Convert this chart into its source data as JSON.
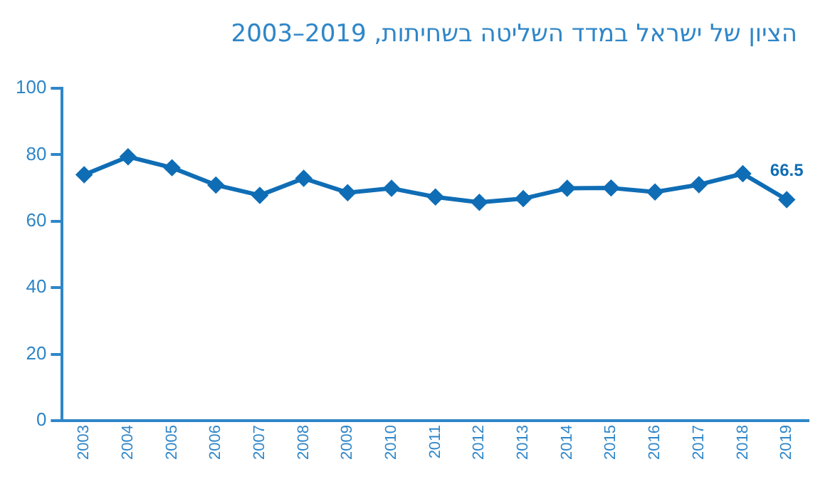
{
  "chart_data": {
    "type": "line",
    "title": "הציון של ישראל במדד השליטה בשחיתות, 2019–2003",
    "categories": [
      "2003",
      "2004",
      "2005",
      "2006",
      "2007",
      "2008",
      "2009",
      "2010",
      "2011",
      "2012",
      "2013",
      "2014",
      "2015",
      "2016",
      "2017",
      "2018",
      "2019"
    ],
    "series": [
      {
        "color": "#0f6db5",
        "values": [
          74.0,
          79.4,
          76.1,
          70.9,
          67.8,
          72.9,
          68.6,
          69.9,
          67.3,
          65.7,
          66.8,
          69.9,
          70,
          68.8,
          71,
          74.3,
          66.5
        ],
        "value_labels": [
          null,
          null,
          null,
          null,
          null,
          null,
          null,
          null,
          null,
          null,
          null,
          null,
          null,
          null,
          null,
          null,
          "66.5"
        ]
      }
    ],
    "ylim": [
      0,
      100
    ],
    "yticks": [
      0,
      20,
      40,
      60,
      80,
      100
    ],
    "grid": false,
    "legend": false,
    "marker": "diamond",
    "line_style": "solid"
  }
}
